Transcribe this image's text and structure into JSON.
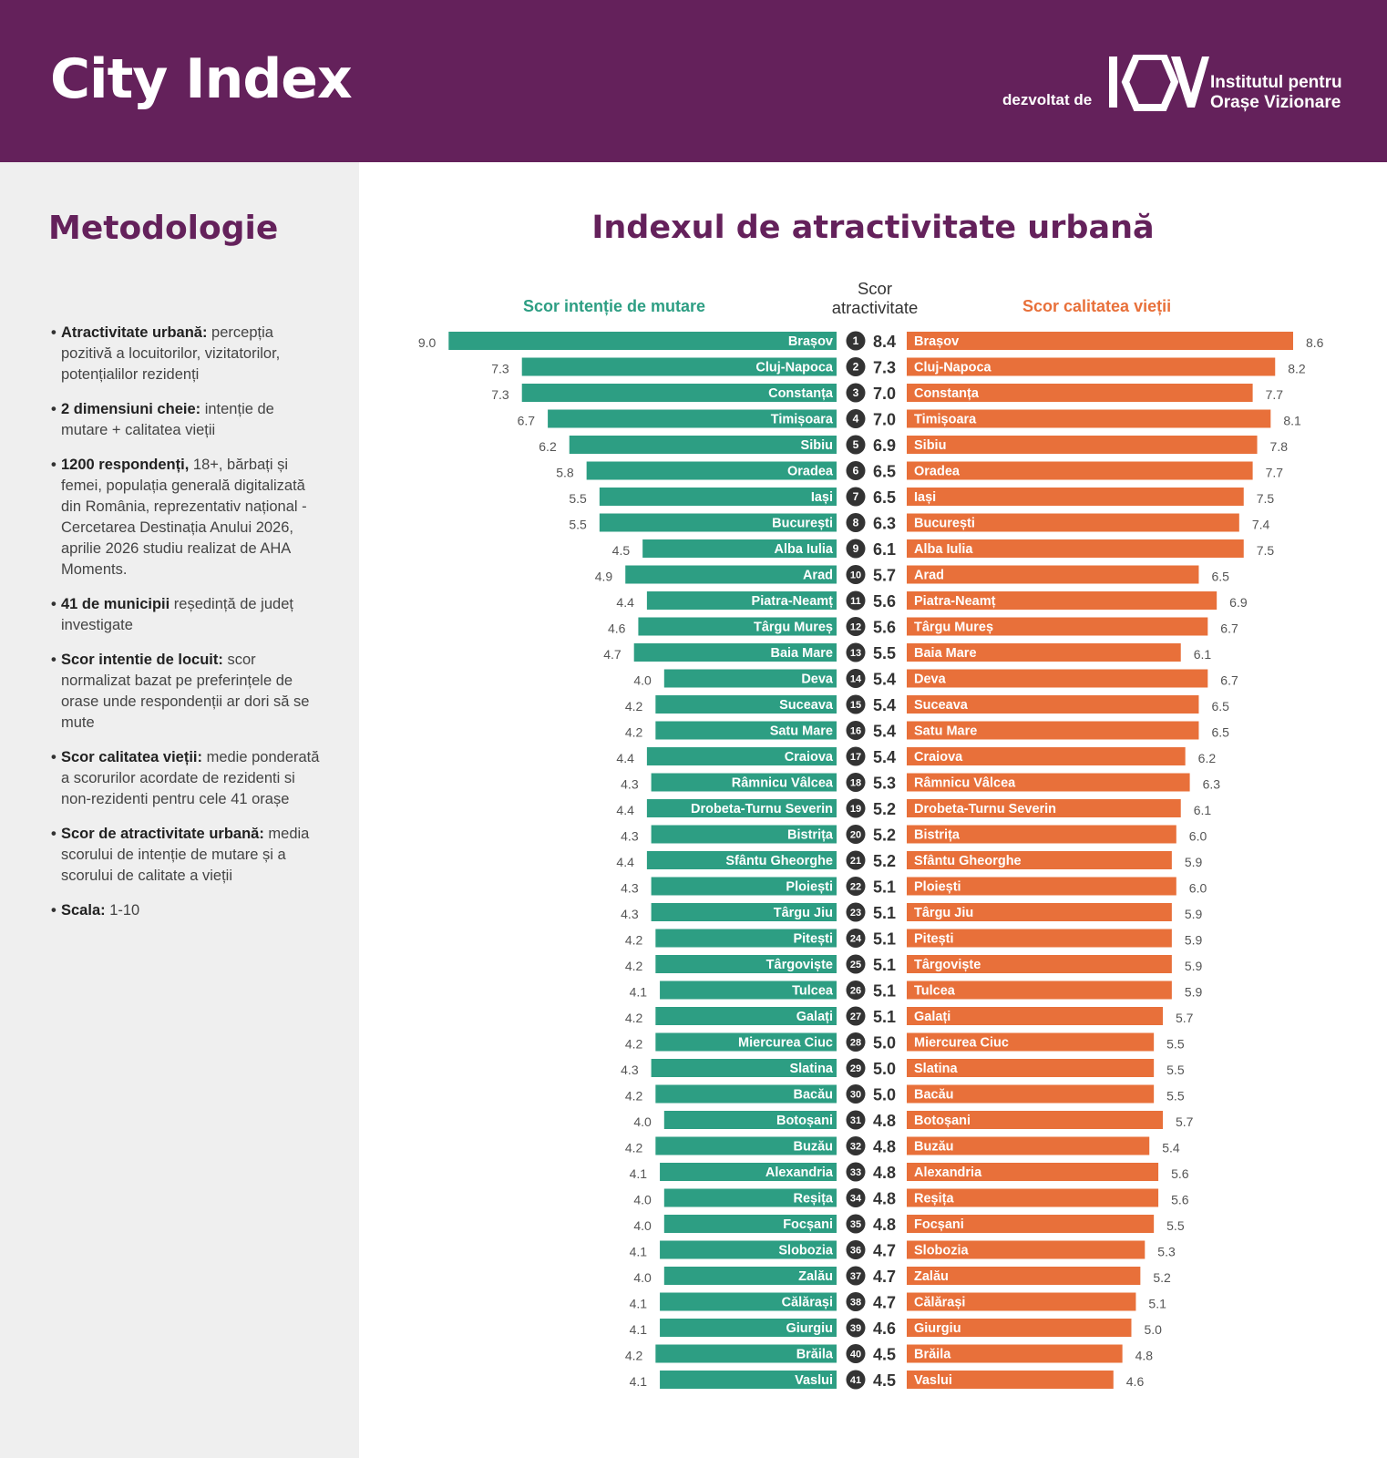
{
  "header": {
    "title": "City Index",
    "developed_by": "dezvoltat de",
    "org_line1": "Institutul pentru",
    "org_line2": "Orașe Vizionare"
  },
  "sidebar": {
    "title": "Metodologie",
    "items": [
      {
        "bold": "Atractivitate urbană:",
        "text": " percepția pozitivă a locuitorilor, vizitatorilor, potențialilor rezidenți"
      },
      {
        "bold": "2 dimensiuni cheie:",
        "text": " intenție de mutare + calitatea vieții"
      },
      {
        "bold": "1200 respondenți,",
        "text": " 18+, bărbați și femei, populația generală digitalizată din România, reprezentativ național - Cercetarea Destinația Anului 2026, aprilie 2026 studiu realizat de AHA Moments."
      },
      {
        "bold": "41 de municipii",
        "text": " reședință de județ investigate"
      },
      {
        "bold": "Scor intentie de locuit:",
        "text": " scor normalizat bazat pe preferințele de orase unde respondenții ar dori să se mute"
      },
      {
        "bold": "Scor calitatea vieții:",
        "text": " medie ponderată a scorurilor acordate de rezidenti si non-rezidenti pentru cele 41 orașe"
      },
      {
        "bold": "Scor de atractivitate urbană:",
        "text": " media scorului de intenție de mutare și a scorului de calitate a vieții"
      },
      {
        "bold": "Scala:",
        "text": " 1-10"
      }
    ]
  },
  "chart_data": {
    "type": "bar",
    "title": "Indexul de atractivitate urbană",
    "left_label": "Scor intenție de mutare",
    "middle_label_line1": "Scor",
    "middle_label_line2": "atractivitate",
    "right_label": "Scor calitatea vieții",
    "colors": {
      "left": "#2d9e83",
      "right": "#e8703a",
      "badge": "#333333"
    },
    "categories": [
      "Brașov",
      "Cluj-Napoca",
      "Constanța",
      "Timișoara",
      "Sibiu",
      "Oradea",
      "Iași",
      "București",
      "Alba Iulia",
      "Arad",
      "Piatra-Neamț",
      "Târgu Mureș",
      "Baia Mare",
      "Deva",
      "Suceava",
      "Satu Mare",
      "Craiova",
      "Râmnicu Vâlcea",
      "Drobeta-Turnu Severin",
      "Bistrița",
      "Sfântu Gheorghe",
      "Ploiești",
      "Târgu Jiu",
      "Pitești",
      "Târgoviște",
      "Tulcea",
      "Galați",
      "Miercurea Ciuc",
      "Slatina",
      "Bacău",
      "Botoșani",
      "Buzău",
      "Alexandria",
      "Reșița",
      "Focșani",
      "Slobozia",
      "Zalău",
      "Călărași",
      "Giurgiu",
      "Brăila",
      "Vaslui"
    ],
    "ranks": [
      "1",
      "2",
      "3",
      "4",
      "5",
      "6",
      "7",
      "8",
      "9",
      "10",
      "11",
      "12",
      "13",
      "14",
      "15",
      "16",
      "17",
      "18",
      "19",
      "20",
      "21",
      "22",
      "23",
      "24",
      "25",
      "26",
      "27",
      "28",
      "29",
      "30",
      "31",
      "32",
      "33",
      "34",
      "35",
      "36",
      "37",
      "38",
      "39",
      "40",
      "41"
    ],
    "series": [
      {
        "name": "Scor intenție de mutare",
        "values": [
          "9.0",
          "7.3",
          "7.3",
          "6.7",
          "6.2",
          "5.8",
          "5.5",
          "5.5",
          "4.5",
          "4.9",
          "4.4",
          "4.6",
          "4.7",
          "4.0",
          "4.2",
          "4.2",
          "4.4",
          "4.3",
          "4.4",
          "4.3",
          "4.4",
          "4.3",
          "4.3",
          "4.2",
          "4.2",
          "4.1",
          "4.2",
          "4.2",
          "4.3",
          "4.2",
          "4.0",
          "4.2",
          "4.1",
          "4.0",
          "4.0",
          "4.1",
          "4.0",
          "4.1",
          "4.1",
          "4.2",
          "4.1"
        ]
      },
      {
        "name": "Scor atractivitate",
        "values": [
          "8.4",
          "7.3",
          "7.0",
          "7.0",
          "6.9",
          "6.5",
          "6.5",
          "6.3",
          "6.1",
          "5.7",
          "5.6",
          "5.6",
          "5.5",
          "5.4",
          "5.4",
          "5.4",
          "5.4",
          "5.3",
          "5.2",
          "5.2",
          "5.2",
          "5.1",
          "5.1",
          "5.1",
          "5.1",
          "5.1",
          "5.1",
          "5.0",
          "5.0",
          "5.0",
          "4.8",
          "4.8",
          "4.8",
          "4.8",
          "4.8",
          "4.7",
          "4.7",
          "4.7",
          "4.6",
          "4.5",
          "4.5"
        ]
      },
      {
        "name": "Scor calitatea vieții",
        "values": [
          "8.6",
          "8.2",
          "7.7",
          "8.1",
          "7.8",
          "7.7",
          "7.5",
          "7.4",
          "7.5",
          "6.5",
          "6.9",
          "6.7",
          "6.1",
          "6.7",
          "6.5",
          "6.5",
          "6.2",
          "6.3",
          "6.1",
          "6.0",
          "5.9",
          "6.0",
          "5.9",
          "5.9",
          "5.9",
          "5.9",
          "5.7",
          "5.5",
          "5.5",
          "5.5",
          "5.7",
          "5.4",
          "5.6",
          "5.6",
          "5.5",
          "5.3",
          "5.2",
          "5.1",
          "5.0",
          "4.8",
          "4.6"
        ]
      }
    ]
  }
}
